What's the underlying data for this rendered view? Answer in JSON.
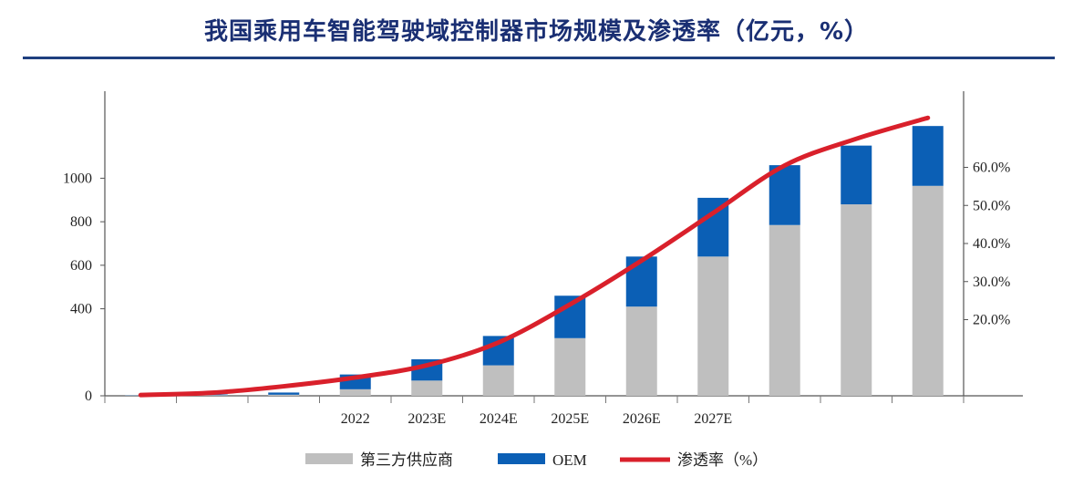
{
  "title": "我国乘用车智能驾驶域控制器市场规模及渗透率（亿元，%）",
  "chart_data": {
    "type": "bar",
    "stacked": true,
    "categories": [
      "",
      "",
      "",
      "2022",
      "2023E",
      "2024E",
      "2025E",
      "2026E",
      "2027E",
      "",
      "",
      ""
    ],
    "series": [
      {
        "name": "第三方供应商",
        "type": "bar",
        "axis": "left",
        "color": "#bfbfbf",
        "values": [
          2,
          3,
          5,
          30,
          70,
          140,
          265,
          410,
          640,
          785,
          880,
          965
        ]
      },
      {
        "name": "OEM",
        "type": "bar",
        "axis": "left",
        "color": "#0b5fb5",
        "values": [
          1,
          3,
          10,
          68,
          98,
          135,
          195,
          230,
          270,
          275,
          270,
          275
        ]
      },
      {
        "name": "渗透率（%）",
        "type": "line",
        "axis": "right",
        "color": "#d9202b",
        "values": [
          0.2,
          0.8,
          2.5,
          4.8,
          8.0,
          14.0,
          24.0,
          35.5,
          48.0,
          60.5,
          67.5,
          73.0
        ]
      }
    ],
    "left_axis": {
      "ylim": [
        0,
        1400
      ],
      "ticks": [
        "0",
        "400",
        "600",
        "800",
        "1000"
      ],
      "tick_values": [
        0,
        400,
        600,
        800,
        1000
      ]
    },
    "right_axis": {
      "ylim": [
        0,
        80
      ],
      "ticks": [
        "20.0%",
        "30.0%",
        "40.0%",
        "50.0%",
        "60.0%"
      ],
      "tick_values": [
        20,
        30,
        40,
        50,
        60
      ]
    },
    "legend": {
      "placement": "bottom",
      "labels": [
        "第三方供应商",
        "OEM",
        "渗透率（%）"
      ]
    },
    "grid": false
  }
}
